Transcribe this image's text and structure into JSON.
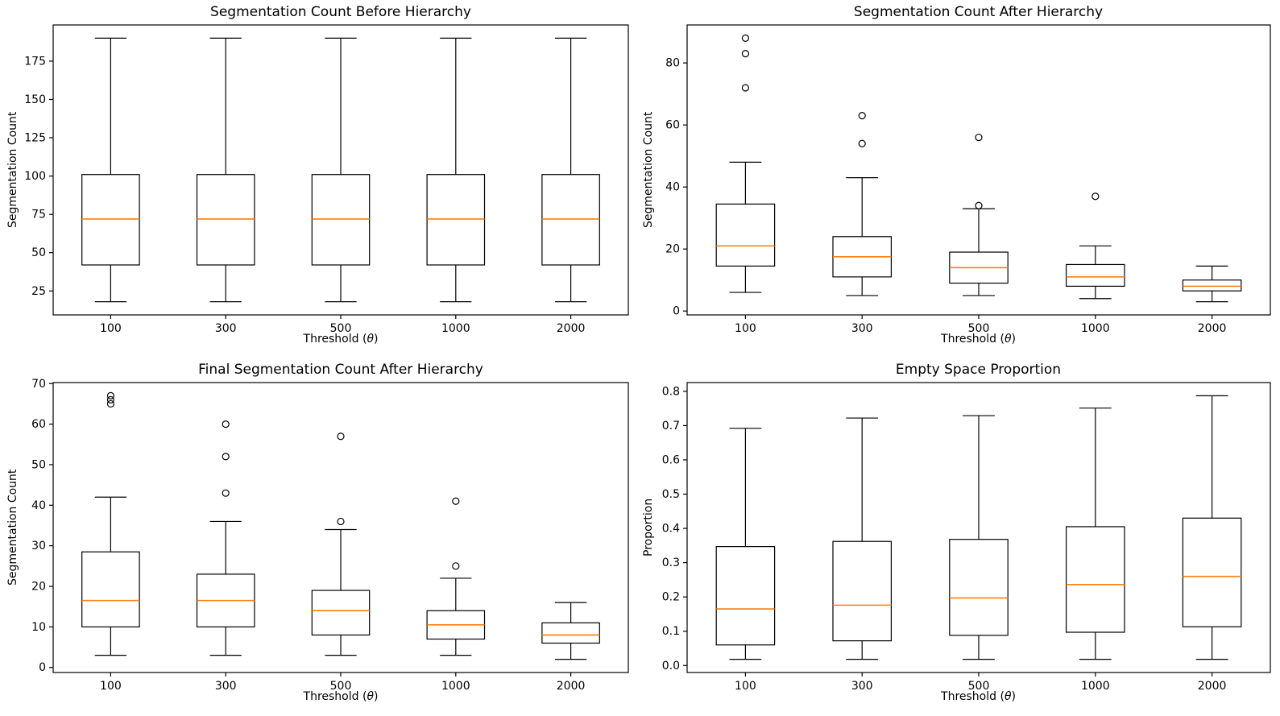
{
  "figure": {
    "background": "#ffffff"
  },
  "colors": {
    "box_line": "#000000",
    "median_line": "#ff7f0e",
    "axis_line": "#000000",
    "tick_text": "#000000"
  },
  "chart_data": [
    {
      "type": "box",
      "title": "Segmentation Count Before Hierarchy",
      "ylabel": "Segmentation Count",
      "xlabel_prefix": "Threshold (",
      "xlabel_theta": "θ",
      "xlabel_suffix": ")",
      "categories": [
        "100",
        "300",
        "500",
        "1000",
        "2000"
      ],
      "ylim": [
        9.4,
        198.6
      ],
      "ytick_values": [
        25,
        50,
        75,
        100,
        125,
        150,
        175
      ],
      "ytick_labels": [
        "25",
        "50",
        "75",
        "100",
        "125",
        "150",
        "175"
      ],
      "grid": false,
      "legend": "none",
      "boxes": [
        {
          "whislo": 18,
          "q1": 42,
          "med": 72,
          "q3": 101,
          "whishi": 190,
          "fliers": []
        },
        {
          "whislo": 18,
          "q1": 42,
          "med": 72,
          "q3": 101,
          "whishi": 190,
          "fliers": []
        },
        {
          "whislo": 18,
          "q1": 42,
          "med": 72,
          "q3": 101,
          "whishi": 190,
          "fliers": []
        },
        {
          "whislo": 18,
          "q1": 42,
          "med": 72,
          "q3": 101,
          "whishi": 190,
          "fliers": []
        },
        {
          "whislo": 18,
          "q1": 42,
          "med": 72,
          "q3": 101,
          "whishi": 190,
          "fliers": []
        }
      ]
    },
    {
      "type": "box",
      "title": "Segmentation Count After Hierarchy",
      "ylabel": "Segmentation Count",
      "xlabel_prefix": "Threshold (",
      "xlabel_theta": "θ",
      "xlabel_suffix": ")",
      "categories": [
        "100",
        "300",
        "500",
        "1000",
        "2000"
      ],
      "ylim": [
        -1.25,
        92.25
      ],
      "ytick_values": [
        0,
        20,
        40,
        60,
        80
      ],
      "ytick_labels": [
        "0",
        "20",
        "40",
        "60",
        "80"
      ],
      "grid": false,
      "legend": "none",
      "boxes": [
        {
          "whislo": 6,
          "q1": 14.5,
          "med": 21,
          "q3": 34.5,
          "whishi": 48,
          "fliers": [
            72,
            83,
            88
          ]
        },
        {
          "whislo": 5,
          "q1": 11,
          "med": 17.5,
          "q3": 24,
          "whishi": 43,
          "fliers": [
            54,
            63
          ]
        },
        {
          "whislo": 5,
          "q1": 9,
          "med": 14,
          "q3": 19,
          "whishi": 33,
          "fliers": [
            34,
            56
          ]
        },
        {
          "whislo": 4,
          "q1": 8,
          "med": 11,
          "q3": 15,
          "whishi": 21,
          "fliers": [
            37
          ]
        },
        {
          "whislo": 3,
          "q1": 6.5,
          "med": 8,
          "q3": 10,
          "whishi": 14.5,
          "fliers": []
        }
      ]
    },
    {
      "type": "box",
      "title": "Final Segmentation Count After Hierarchy",
      "ylabel": "Segmentation Count",
      "xlabel_prefix": "Threshold (",
      "xlabel_theta": "θ",
      "xlabel_suffix": ")",
      "categories": [
        "100",
        "300",
        "500",
        "1000",
        "2000"
      ],
      "ylim": [
        -1.25,
        70.25
      ],
      "ytick_values": [
        0,
        10,
        20,
        30,
        40,
        50,
        60,
        70
      ],
      "ytick_labels": [
        "0",
        "10",
        "20",
        "30",
        "40",
        "50",
        "60",
        "70"
      ],
      "grid": false,
      "legend": "none",
      "boxes": [
        {
          "whislo": 3,
          "q1": 10,
          "med": 16.5,
          "q3": 28.5,
          "whishi": 42,
          "fliers": [
            65,
            66,
            67
          ]
        },
        {
          "whislo": 3,
          "q1": 10,
          "med": 16.5,
          "q3": 23,
          "whishi": 36,
          "fliers": [
            43,
            52,
            60
          ]
        },
        {
          "whislo": 3,
          "q1": 8,
          "med": 14,
          "q3": 19,
          "whishi": 34,
          "fliers": [
            36,
            57
          ]
        },
        {
          "whislo": 3,
          "q1": 7,
          "med": 10.5,
          "q3": 14,
          "whishi": 22,
          "fliers": [
            25,
            41
          ]
        },
        {
          "whislo": 2,
          "q1": 6,
          "med": 8,
          "q3": 11,
          "whishi": 16,
          "fliers": []
        }
      ]
    },
    {
      "type": "box",
      "title": "Empty Space Proportion",
      "ylabel": "Proportion",
      "xlabel_prefix": "Threshold (",
      "xlabel_theta": "θ",
      "xlabel_suffix": ")",
      "categories": [
        "100",
        "300",
        "500",
        "1000",
        "2000"
      ],
      "ylim": [
        -0.0205,
        0.8255
      ],
      "ytick_values": [
        0.0,
        0.1,
        0.2,
        0.3,
        0.4,
        0.5,
        0.6,
        0.7,
        0.8
      ],
      "ytick_labels": [
        "0.0",
        "0.1",
        "0.2",
        "0.3",
        "0.4",
        "0.5",
        "0.6",
        "0.7",
        "0.8"
      ],
      "grid": false,
      "legend": "none",
      "boxes": [
        {
          "whislo": 0.018,
          "q1": 0.06,
          "med": 0.165,
          "q3": 0.347,
          "whishi": 0.692,
          "fliers": []
        },
        {
          "whislo": 0.018,
          "q1": 0.072,
          "med": 0.176,
          "q3": 0.362,
          "whishi": 0.722,
          "fliers": []
        },
        {
          "whislo": 0.018,
          "q1": 0.088,
          "med": 0.197,
          "q3": 0.368,
          "whishi": 0.729,
          "fliers": []
        },
        {
          "whislo": 0.018,
          "q1": 0.097,
          "med": 0.236,
          "q3": 0.405,
          "whishi": 0.751,
          "fliers": []
        },
        {
          "whislo": 0.018,
          "q1": 0.113,
          "med": 0.26,
          "q3": 0.43,
          "whishi": 0.787,
          "fliers": []
        }
      ]
    }
  ]
}
